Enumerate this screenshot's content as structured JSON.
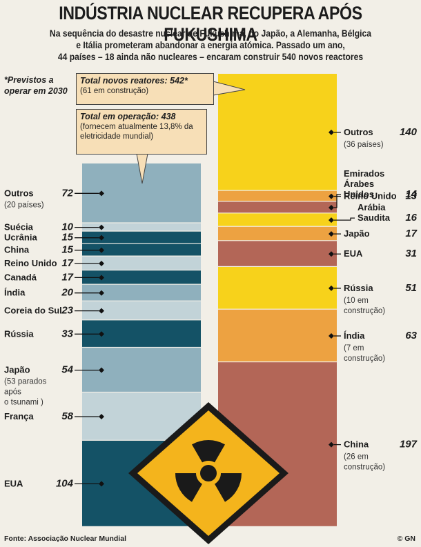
{
  "title": "INDÚSTRIA NUCLEAR RECUPERA APÓS FUKUSHIMA",
  "subtitle_lines": [
    "Na sequência do desastre nuclear de Fukushima, no Japão, a Alemanha, Bélgica",
    "e Itália prometeram abandonar a energia atómica. Passado um ano,",
    "44 países – 18 ainda não nucleares – encaram construir 540 novos reactores"
  ],
  "note_previstos": "*Previstos a operar em 2030",
  "callout_total_new": {
    "title": "Total novos reatores: 542*",
    "sub": "(61 em construção)"
  },
  "callout_total_operating": {
    "title": "Total em operação: 438",
    "sub": "(fornecem atualmente 13,8% da eletricidade mundial)"
  },
  "source": "Fonte: Associação Nuclear Mundial",
  "credit": "© GN",
  "colors": {
    "operating_dark": "#145266",
    "operating_light": "#8fb0bd",
    "operating_pale": "#c2d3d8",
    "new_yellow": "#f7d21b",
    "new_orange": "#eda241",
    "new_brown": "#b36657",
    "hazard_yellow": "#f4b41c"
  },
  "chart_data": {
    "type": "bar",
    "stacked": true,
    "series": [
      {
        "name": "Total em operação: 438",
        "categories": [
          "EUA",
          "França",
          "Japão",
          "Rússia",
          "Coreia do Sul",
          "Índia",
          "Canadá",
          "Reino Unido",
          "China",
          "Ucrânia",
          "Suécia",
          "Outros"
        ],
        "values": [
          104,
          58,
          54,
          33,
          23,
          20,
          17,
          17,
          15,
          15,
          10,
          72
        ],
        "notes": [
          "",
          "",
          "(53 parados após o tsunami )",
          "",
          "",
          "",
          "",
          "",
          "",
          "",
          "",
          "(20 países)"
        ],
        "fills": [
          "#145266",
          "#c2d3d8",
          "#8fb0bd",
          "#145266",
          "#c2d3d8",
          "#8fb0bd",
          "#145266",
          "#c2d3d8",
          "#145266",
          "#145266",
          "#c2d3d8",
          "#8fb0bd"
        ]
      },
      {
        "name": "Total novos reatores: 542*",
        "categories": [
          "China",
          "Índia",
          "Rússia",
          "EUA",
          "Japão",
          "Arábia Saudita",
          "Emirados Árabes Unidos",
          "Reino Unido",
          "Outros"
        ],
        "values": [
          197,
          63,
          51,
          31,
          17,
          16,
          14,
          13,
          140
        ],
        "notes": [
          "(26 em construção)",
          "(7 em construção)",
          "(10 em construção)",
          "",
          "",
          "",
          "",
          "",
          "(36 países)"
        ],
        "fills": [
          "#b36657",
          "#eda241",
          "#f7d21b",
          "#b36657",
          "#eda241",
          "#f7d21b",
          "#b36657",
          "#eda241",
          "#f7d21b"
        ]
      }
    ],
    "title": "INDÚSTRIA NUCLEAR RECUPERA APÓS FUKUSHIMA",
    "unit": "reatores"
  }
}
